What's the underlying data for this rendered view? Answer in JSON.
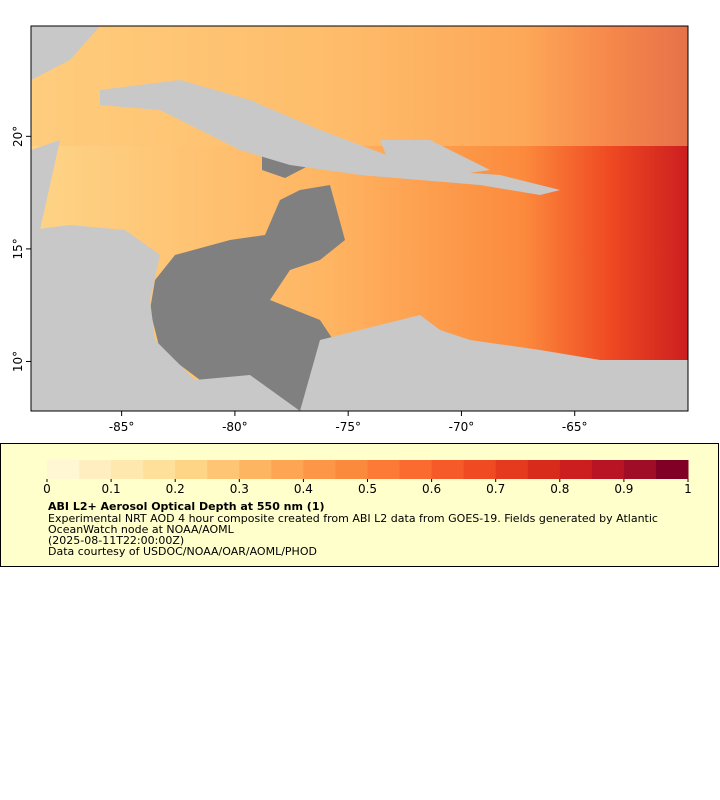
{
  "map": {
    "xlim": [
      -89,
      -60
    ],
    "ylim": [
      7.8,
      24.9
    ],
    "xticks": [
      {
        "value": -85,
        "label": "-85°"
      },
      {
        "value": -80,
        "label": "-80°"
      },
      {
        "value": -75,
        "label": "-75°"
      },
      {
        "value": -70,
        "label": "-70°"
      },
      {
        "value": -65,
        "label": "-65°"
      }
    ],
    "yticks": [
      {
        "value": 10,
        "label": "10°"
      },
      {
        "value": 15,
        "label": "15°"
      },
      {
        "value": 20,
        "label": "20°"
      }
    ]
  },
  "colorbar": {
    "range": [
      0,
      1
    ],
    "ticks": [
      0,
      0.1,
      0.2,
      0.3,
      0.4,
      0.5,
      0.6,
      0.7,
      0.8,
      0.9,
      1
    ],
    "colors": [
      "#fff7d4",
      "#ffefc0",
      "#fee8ad",
      "#fee09a",
      "#fed487",
      "#fec574",
      "#feb562",
      "#fea553",
      "#fd9646",
      "#fc8a3d",
      "#fc7a35",
      "#fb6a2e",
      "#f65a28",
      "#ef4a22",
      "#e53a1e",
      "#d92b1c",
      "#cc1e1f",
      "#b91424",
      "#a00d26",
      "#800026"
    ]
  },
  "legend": {
    "title": "ABI L2+ Aerosol Optical Depth at 550 nm (1)",
    "lines": [
      "Experimental NRT AOD 4 hour composite created from ABI L2 data from GOES-19. Fields generated by Atlantic",
      "OceanWatch node at NOAA/AOML",
      "(2025-08-11T22:00:00Z)",
      "Data courtesy of USDOC/NOAA/OAR/AOML/PHOD"
    ]
  }
}
